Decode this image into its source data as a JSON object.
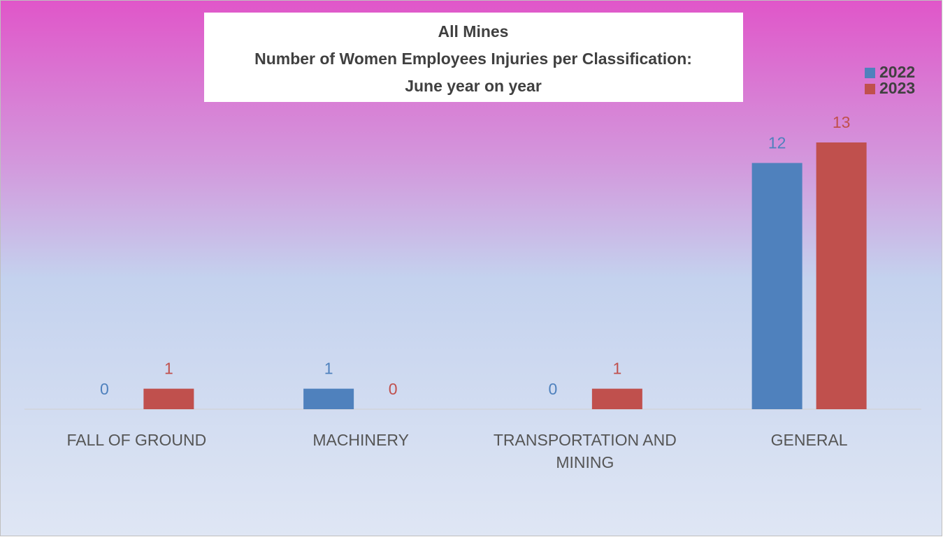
{
  "chart_data": {
    "type": "bar",
    "title": [
      "All Mines",
      "Number of Women Employees Injuries per Classification:",
      "June year on year"
    ],
    "categories": [
      "FALL OF GROUND",
      "MACHINERY",
      "TRANSPORTATION AND MINING",
      "GENERAL"
    ],
    "series": [
      {
        "name": "2022",
        "color": "#4f81bd",
        "values": [
          0,
          1,
          0,
          12
        ]
      },
      {
        "name": "2023",
        "color": "#c0504d",
        "values": [
          1,
          0,
          1,
          13
        ]
      }
    ],
    "legend": "top-right"
  }
}
